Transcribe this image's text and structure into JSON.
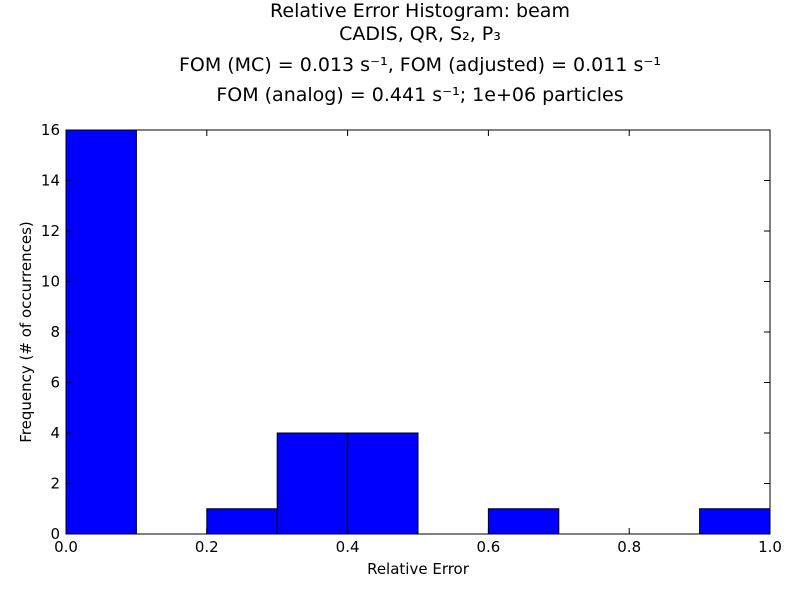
{
  "chart_data": {
    "type": "bar",
    "title_lines": [
      "Relative Error Histogram: beam",
      "CADIS, QR, S₂, P₃",
      "FOM (MC) = 0.013 s⁻¹, FOM (adjusted) = 0.011 s⁻¹",
      "FOM (analog) = 0.441 s⁻¹;  1e+06 particles"
    ],
    "xlabel": "Relative Error",
    "ylabel": "Frequency (# of occurrences)",
    "xlim": [
      0.0,
      1.0
    ],
    "ylim": [
      0,
      16
    ],
    "xticks": [
      "0.0",
      "0.2",
      "0.4",
      "0.6",
      "0.8",
      "1.0"
    ],
    "yticks": [
      "0",
      "2",
      "4",
      "6",
      "8",
      "10",
      "12",
      "14",
      "16"
    ],
    "bins": [
      {
        "start": 0.0,
        "end": 0.1,
        "count": 16
      },
      {
        "start": 0.1,
        "end": 0.2,
        "count": 0
      },
      {
        "start": 0.2,
        "end": 0.3,
        "count": 1
      },
      {
        "start": 0.3,
        "end": 0.4,
        "count": 4
      },
      {
        "start": 0.4,
        "end": 0.5,
        "count": 4
      },
      {
        "start": 0.5,
        "end": 0.6,
        "count": 0
      },
      {
        "start": 0.6,
        "end": 0.7,
        "count": 1
      },
      {
        "start": 0.7,
        "end": 0.8,
        "count": 0
      },
      {
        "start": 0.8,
        "end": 0.9,
        "count": 0
      },
      {
        "start": 0.9,
        "end": 1.0,
        "count": 1
      }
    ],
    "bar_color": "#0000ff",
    "grid": false,
    "legend": "none"
  }
}
